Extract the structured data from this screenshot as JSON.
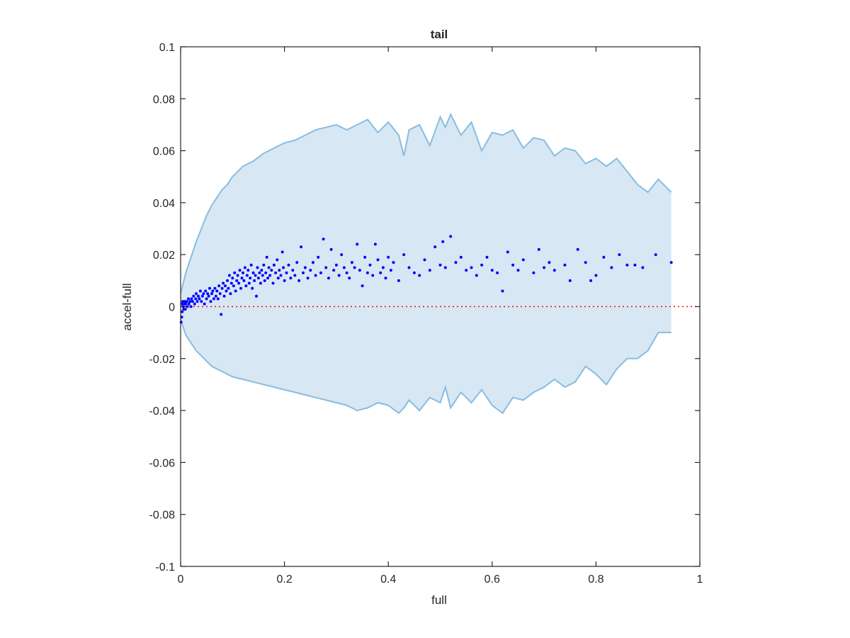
{
  "chart_data": {
    "type": "scatter",
    "title": "tail",
    "xlabel": "full",
    "ylabel": "accel-full",
    "xlim": [
      0,
      1
    ],
    "ylim": [
      -0.1,
      0.1
    ],
    "x_ticks": [
      0,
      0.2,
      0.4,
      0.6,
      0.8,
      1
    ],
    "x_tick_labels": [
      "0",
      "0.2",
      "0.4",
      "0.6",
      "0.8",
      "1"
    ],
    "y_ticks": [
      -0.1,
      -0.08,
      -0.06,
      -0.04,
      -0.02,
      0,
      0.02,
      0.04,
      0.06,
      0.08,
      0.1
    ],
    "y_tick_labels": [
      "-0.1",
      "-0.08",
      "-0.06",
      "-0.04",
      "-0.02",
      "0",
      "0.02",
      "0.04",
      "0.06",
      "0.08",
      "0.1"
    ],
    "grid": false,
    "legend": "none",
    "reference_line": {
      "y": 0,
      "style": "dotted",
      "color": "#ff0000"
    },
    "band": {
      "fill_color": "#d8e7f4",
      "edge_color": "#88bde0",
      "x": [
        0.0,
        0.005,
        0.01,
        0.02,
        0.03,
        0.04,
        0.05,
        0.06,
        0.07,
        0.08,
        0.09,
        0.1,
        0.12,
        0.14,
        0.16,
        0.18,
        0.2,
        0.22,
        0.24,
        0.26,
        0.28,
        0.3,
        0.32,
        0.34,
        0.36,
        0.38,
        0.4,
        0.42,
        0.43,
        0.44,
        0.46,
        0.48,
        0.5,
        0.51,
        0.52,
        0.54,
        0.56,
        0.58,
        0.6,
        0.62,
        0.64,
        0.66,
        0.68,
        0.7,
        0.72,
        0.74,
        0.76,
        0.78,
        0.8,
        0.82,
        0.84,
        0.86,
        0.88,
        0.9,
        0.92,
        0.945
      ],
      "upper": [
        0.005,
        0.009,
        0.013,
        0.019,
        0.025,
        0.03,
        0.035,
        0.039,
        0.042,
        0.045,
        0.047,
        0.05,
        0.054,
        0.056,
        0.059,
        0.061,
        0.063,
        0.064,
        0.066,
        0.068,
        0.069,
        0.07,
        0.068,
        0.07,
        0.072,
        0.067,
        0.071,
        0.066,
        0.058,
        0.068,
        0.07,
        0.062,
        0.073,
        0.069,
        0.074,
        0.066,
        0.071,
        0.06,
        0.067,
        0.066,
        0.068,
        0.061,
        0.065,
        0.064,
        0.058,
        0.061,
        0.06,
        0.055,
        0.057,
        0.054,
        0.057,
        0.052,
        0.047,
        0.044,
        0.049,
        0.044
      ],
      "lower": [
        -0.005,
        -0.008,
        -0.011,
        -0.014,
        -0.017,
        -0.019,
        -0.021,
        -0.023,
        -0.024,
        -0.025,
        -0.026,
        -0.027,
        -0.028,
        -0.029,
        -0.03,
        -0.031,
        -0.032,
        -0.033,
        -0.034,
        -0.035,
        -0.036,
        -0.037,
        -0.038,
        -0.04,
        -0.039,
        -0.037,
        -0.038,
        -0.041,
        -0.039,
        -0.036,
        -0.04,
        -0.035,
        -0.037,
        -0.031,
        -0.039,
        -0.033,
        -0.037,
        -0.032,
        -0.038,
        -0.041,
        -0.035,
        -0.036,
        -0.033,
        -0.031,
        -0.028,
        -0.031,
        -0.029,
        -0.023,
        -0.026,
        -0.03,
        -0.024,
        -0.02,
        -0.02,
        -0.017,
        -0.01,
        -0.01
      ]
    },
    "series": [
      {
        "marker": "dot",
        "color": "#0000ff",
        "points": [
          [
            0.001,
            -0.006
          ],
          [
            0.002,
            -0.004
          ],
          [
            0.002,
            0.001
          ],
          [
            0.003,
            -0.002
          ],
          [
            0.004,
            0.002
          ],
          [
            0.005,
            0.0
          ],
          [
            0.006,
            -0.001
          ],
          [
            0.007,
            0.001
          ],
          [
            0.008,
            0.002
          ],
          [
            0.009,
            -0.001
          ],
          [
            0.01,
            0.001
          ],
          [
            0.012,
            0.002
          ],
          [
            0.013,
            0.0
          ],
          [
            0.015,
            0.003
          ],
          [
            0.016,
            0.001
          ],
          [
            0.018,
            0.002
          ],
          [
            0.02,
            0.0
          ],
          [
            0.021,
            0.003
          ],
          [
            0.023,
            0.002
          ],
          [
            0.025,
            0.004
          ],
          [
            0.027,
            0.001
          ],
          [
            0.029,
            0.003
          ],
          [
            0.03,
            0.005
          ],
          [
            0.032,
            0.002
          ],
          [
            0.034,
            0.004
          ],
          [
            0.036,
            0.003
          ],
          [
            0.038,
            0.006
          ],
          [
            0.04,
            0.002
          ],
          [
            0.042,
            0.004
          ],
          [
            0.044,
            0.005
          ],
          [
            0.046,
            0.001
          ],
          [
            0.048,
            0.006
          ],
          [
            0.05,
            0.003
          ],
          [
            0.052,
            0.005
          ],
          [
            0.054,
            0.004
          ],
          [
            0.056,
            0.007
          ],
          [
            0.058,
            0.002
          ],
          [
            0.06,
            0.005
          ],
          [
            0.062,
            0.006
          ],
          [
            0.064,
            0.003
          ],
          [
            0.066,
            0.007
          ],
          [
            0.068,
            0.004
          ],
          [
            0.07,
            0.006
          ],
          [
            0.072,
            0.003
          ],
          [
            0.074,
            0.008
          ],
          [
            0.076,
            0.005
          ],
          [
            0.078,
            -0.003
          ],
          [
            0.08,
            0.007
          ],
          [
            0.082,
            0.009
          ],
          [
            0.084,
            0.004
          ],
          [
            0.086,
            0.008
          ],
          [
            0.088,
            0.006
          ],
          [
            0.09,
            0.01
          ],
          [
            0.092,
            0.007
          ],
          [
            0.094,
            0.012
          ],
          [
            0.096,
            0.005
          ],
          [
            0.098,
            0.009
          ],
          [
            0.1,
            0.011
          ],
          [
            0.102,
            0.008
          ],
          [
            0.104,
            0.013
          ],
          [
            0.106,
            0.006
          ],
          [
            0.108,
            0.01
          ],
          [
            0.11,
            0.012
          ],
          [
            0.112,
            0.009
          ],
          [
            0.114,
            0.014
          ],
          [
            0.116,
            0.007
          ],
          [
            0.118,
            0.011
          ],
          [
            0.12,
            0.013
          ],
          [
            0.122,
            0.01
          ],
          [
            0.124,
            0.015
          ],
          [
            0.126,
            0.008
          ],
          [
            0.128,
            0.012
          ],
          [
            0.13,
            0.014
          ],
          [
            0.132,
            0.009
          ],
          [
            0.134,
            0.011
          ],
          [
            0.136,
            0.016
          ],
          [
            0.138,
            0.007
          ],
          [
            0.14,
            0.013
          ],
          [
            0.142,
            0.01
          ],
          [
            0.144,
            0.012
          ],
          [
            0.146,
            0.004
          ],
          [
            0.148,
            0.015
          ],
          [
            0.15,
            0.011
          ],
          [
            0.152,
            0.013
          ],
          [
            0.154,
            0.009
          ],
          [
            0.156,
            0.014
          ],
          [
            0.158,
            0.012
          ],
          [
            0.16,
            0.016
          ],
          [
            0.162,
            0.01
          ],
          [
            0.164,
            0.013
          ],
          [
            0.166,
            0.019
          ],
          [
            0.168,
            0.011
          ],
          [
            0.17,
            0.015
          ],
          [
            0.172,
            0.012
          ],
          [
            0.175,
            0.014
          ],
          [
            0.178,
            0.009
          ],
          [
            0.18,
            0.016
          ],
          [
            0.183,
            0.013
          ],
          [
            0.186,
            0.018
          ],
          [
            0.188,
            0.011
          ],
          [
            0.19,
            0.014
          ],
          [
            0.193,
            0.012
          ],
          [
            0.196,
            0.021
          ],
          [
            0.198,
            0.015
          ],
          [
            0.2,
            0.01
          ],
          [
            0.204,
            0.013
          ],
          [
            0.208,
            0.016
          ],
          [
            0.212,
            0.011
          ],
          [
            0.216,
            0.014
          ],
          [
            0.22,
            0.012
          ],
          [
            0.224,
            0.017
          ],
          [
            0.228,
            0.01
          ],
          [
            0.232,
            0.023
          ],
          [
            0.236,
            0.013
          ],
          [
            0.24,
            0.015
          ],
          [
            0.245,
            0.011
          ],
          [
            0.25,
            0.014
          ],
          [
            0.255,
            0.017
          ],
          [
            0.26,
            0.012
          ],
          [
            0.265,
            0.019
          ],
          [
            0.27,
            0.013
          ],
          [
            0.275,
            0.026
          ],
          [
            0.28,
            0.015
          ],
          [
            0.285,
            0.011
          ],
          [
            0.29,
            0.022
          ],
          [
            0.295,
            0.014
          ],
          [
            0.3,
            0.016
          ],
          [
            0.305,
            0.012
          ],
          [
            0.31,
            0.02
          ],
          [
            0.315,
            0.015
          ],
          [
            0.32,
            0.013
          ],
          [
            0.325,
            0.011
          ],
          [
            0.33,
            0.017
          ],
          [
            0.335,
            0.015
          ],
          [
            0.34,
            0.024
          ],
          [
            0.345,
            0.014
          ],
          [
            0.35,
            0.008
          ],
          [
            0.355,
            0.019
          ],
          [
            0.36,
            0.013
          ],
          [
            0.365,
            0.016
          ],
          [
            0.37,
            0.012
          ],
          [
            0.375,
            0.024
          ],
          [
            0.38,
            0.018
          ],
          [
            0.385,
            0.013
          ],
          [
            0.39,
            0.015
          ],
          [
            0.395,
            0.011
          ],
          [
            0.4,
            0.019
          ],
          [
            0.405,
            0.014
          ],
          [
            0.41,
            0.017
          ],
          [
            0.42,
            0.01
          ],
          [
            0.43,
            0.02
          ],
          [
            0.44,
            0.015
          ],
          [
            0.45,
            0.013
          ],
          [
            0.46,
            0.012
          ],
          [
            0.47,
            0.018
          ],
          [
            0.48,
            0.014
          ],
          [
            0.49,
            0.023
          ],
          [
            0.5,
            0.016
          ],
          [
            0.505,
            0.025
          ],
          [
            0.51,
            0.015
          ],
          [
            0.52,
            0.027
          ],
          [
            0.53,
            0.017
          ],
          [
            0.54,
            0.019
          ],
          [
            0.55,
            0.014
          ],
          [
            0.56,
            0.015
          ],
          [
            0.57,
            0.012
          ],
          [
            0.58,
            0.016
          ],
          [
            0.59,
            0.019
          ],
          [
            0.6,
            0.014
          ],
          [
            0.61,
            0.013
          ],
          [
            0.62,
            0.006
          ],
          [
            0.63,
            0.021
          ],
          [
            0.64,
            0.016
          ],
          [
            0.65,
            0.014
          ],
          [
            0.66,
            0.018
          ],
          [
            0.68,
            0.013
          ],
          [
            0.69,
            0.022
          ],
          [
            0.7,
            0.015
          ],
          [
            0.71,
            0.017
          ],
          [
            0.72,
            0.014
          ],
          [
            0.74,
            0.016
          ],
          [
            0.75,
            0.01
          ],
          [
            0.765,
            0.022
          ],
          [
            0.78,
            0.017
          ],
          [
            0.79,
            0.01
          ],
          [
            0.8,
            0.012
          ],
          [
            0.815,
            0.019
          ],
          [
            0.83,
            0.015
          ],
          [
            0.845,
            0.02
          ],
          [
            0.86,
            0.016
          ],
          [
            0.875,
            0.016
          ],
          [
            0.89,
            0.015
          ],
          [
            0.915,
            0.02
          ],
          [
            0.945,
            0.017
          ]
        ]
      }
    ]
  }
}
